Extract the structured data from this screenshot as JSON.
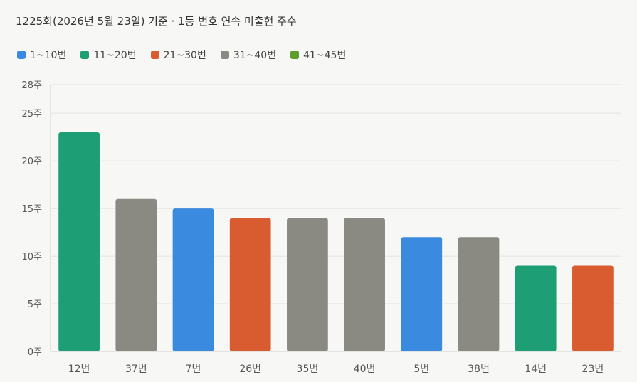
{
  "title": "1225회(2026년 5월 23일) 기준 · 1등 번호 연속 미출현 주수",
  "legend": [
    {
      "label": "1~10번",
      "color": "#3a8be0"
    },
    {
      "label": "11~20번",
      "color": "#1e9e74"
    },
    {
      "label": "21~30번",
      "color": "#d95b30"
    },
    {
      "label": "31~40번",
      "color": "#8a8982"
    },
    {
      "label": "41~45번",
      "color": "#5e9c2c"
    }
  ],
  "chart_data": {
    "type": "bar",
    "categories": [
      "12번",
      "37번",
      "7번",
      "26번",
      "35번",
      "40번",
      "5번",
      "38번",
      "14번",
      "23번"
    ],
    "values": [
      23,
      16,
      15,
      14,
      14,
      14,
      12,
      12,
      9,
      9
    ],
    "bar_colors": [
      "#1e9e74",
      "#8a8982",
      "#3a8be0",
      "#d95b30",
      "#8a8982",
      "#8a8982",
      "#3a8be0",
      "#8a8982",
      "#1e9e74",
      "#d95b30"
    ],
    "y_ticks": [
      {
        "value": 0,
        "label": "0주"
      },
      {
        "value": 5,
        "label": "5주"
      },
      {
        "value": 10,
        "label": "10주"
      },
      {
        "value": 15,
        "label": "15주"
      },
      {
        "value": 20,
        "label": "20주"
      },
      {
        "value": 25,
        "label": "25주"
      },
      {
        "value": 28,
        "label": "28주"
      }
    ],
    "ylim": [
      0,
      28
    ],
    "grid": true,
    "legend_position": "top-left"
  }
}
